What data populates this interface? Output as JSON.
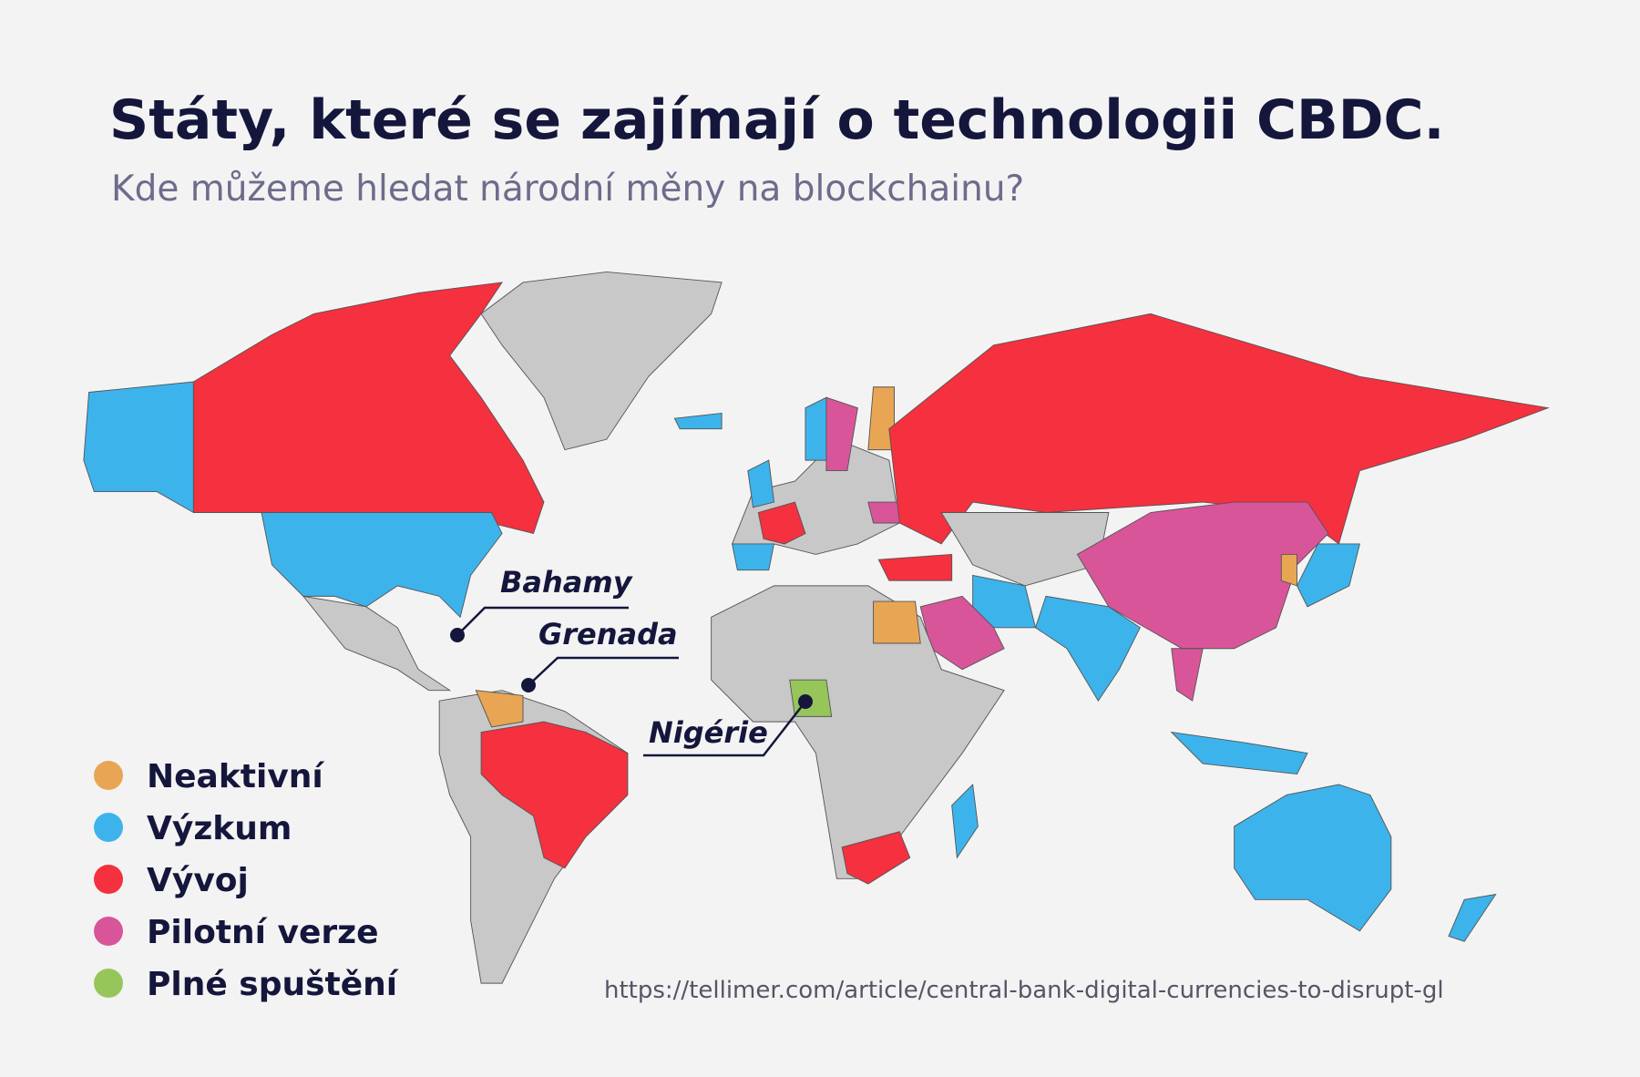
{
  "header": {
    "title": "Státy, které se zajímají o technologii CBDC.",
    "subtitle": "Kde můžeme hledat národní měny na blockchainu?"
  },
  "annotations": [
    "Bahamy",
    "Grenada",
    "Nigérie"
  ],
  "legend": [
    {
      "label": "Neaktivní",
      "color": "#e8a654"
    },
    {
      "label": "Výzkum",
      "color": "#3db3ec"
    },
    {
      "label": "Vývoj",
      "color": "#f5303f"
    },
    {
      "label": "Pilotní verze",
      "color": "#d9559a"
    },
    {
      "label": "Plné spuštění",
      "color": "#96c65a"
    }
  ],
  "source": "https://tellimer.com/article/central-bank-digital-currencies-to-disrupt-gl"
}
